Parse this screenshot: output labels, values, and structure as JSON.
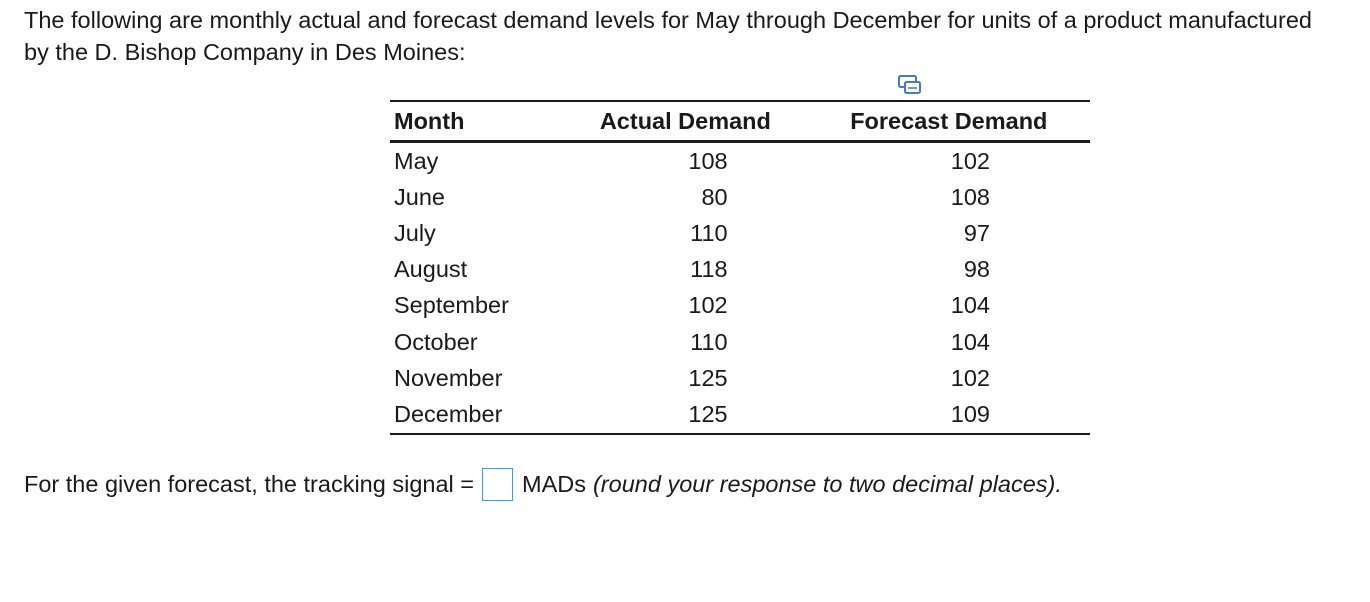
{
  "problem": {
    "intro_text": "The following are monthly actual and forecast demand levels for May through December for units of a product manufactured by the D. Bishop Company in Des Moines:"
  },
  "toolbar": {
    "copy_icon": "copy-table-icon"
  },
  "table": {
    "headers": [
      "Month",
      "Actual Demand",
      "Forecast Demand"
    ],
    "rows": [
      {
        "month": "May",
        "actual": "108",
        "forecast": "102"
      },
      {
        "month": "June",
        "actual": "80",
        "forecast": "108"
      },
      {
        "month": "July",
        "actual": "110",
        "forecast": "97"
      },
      {
        "month": "August",
        "actual": "118",
        "forecast": "98"
      },
      {
        "month": "September",
        "actual": "102",
        "forecast": "104"
      },
      {
        "month": "October",
        "actual": "110",
        "forecast": "104"
      },
      {
        "month": "November",
        "actual": "125",
        "forecast": "102"
      },
      {
        "month": "December",
        "actual": "125",
        "forecast": "109"
      }
    ]
  },
  "question": {
    "prefix": "For the given forecast, the tracking signal =",
    "answer_value": "",
    "unit": "MADs",
    "hint": "(round your response to two decimal places)."
  },
  "colors": {
    "input_border": "#5b8fd6",
    "text": "#1a1a1a"
  }
}
